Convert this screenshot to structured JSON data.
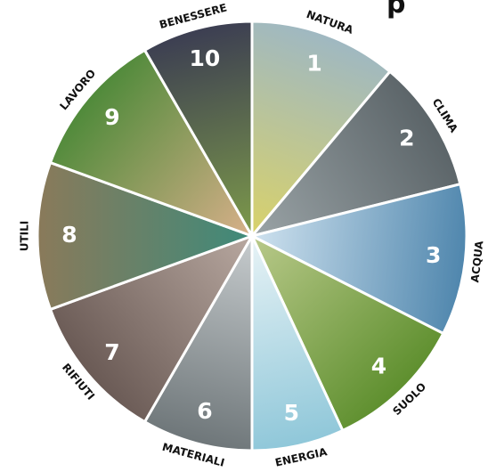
{
  "diagram": {
    "partial_title": "p",
    "segments": [
      {
        "number": "1",
        "label": "NATURA",
        "color": "#9fb8c2",
        "accent": "#d9d26a"
      },
      {
        "number": "2",
        "label": "CLIMA",
        "color": "#5b6468",
        "accent": "#9aa3a6"
      },
      {
        "number": "3",
        "label": "ACQUA",
        "color": "#4f86ad",
        "accent": "#cfe2ef"
      },
      {
        "number": "4",
        "label": "SUOLO",
        "color": "#5e8f2e",
        "accent": "#b9c98a"
      },
      {
        "number": "5",
        "label": "ENERGIA",
        "color": "#8fc7d9",
        "accent": "#e8f3f6"
      },
      {
        "number": "6",
        "label": "MATERIALI",
        "color": "#6e7679",
        "accent": "#c7ccce"
      },
      {
        "number": "7",
        "label": "RIFIUTI",
        "color": "#6a5a55",
        "accent": "#b8a8a0"
      },
      {
        "number": "8",
        "label": "UTILI",
        "color": "#8a7a5a",
        "accent": "#3e8a7a"
      },
      {
        "number": "9",
        "label": "LAVORO",
        "color": "#4f8a3a",
        "accent": "#d8b08a"
      },
      {
        "number": "10",
        "label": "BENESSERE",
        "color": "#3c3e52",
        "accent": "#7d9a4a"
      }
    ]
  }
}
